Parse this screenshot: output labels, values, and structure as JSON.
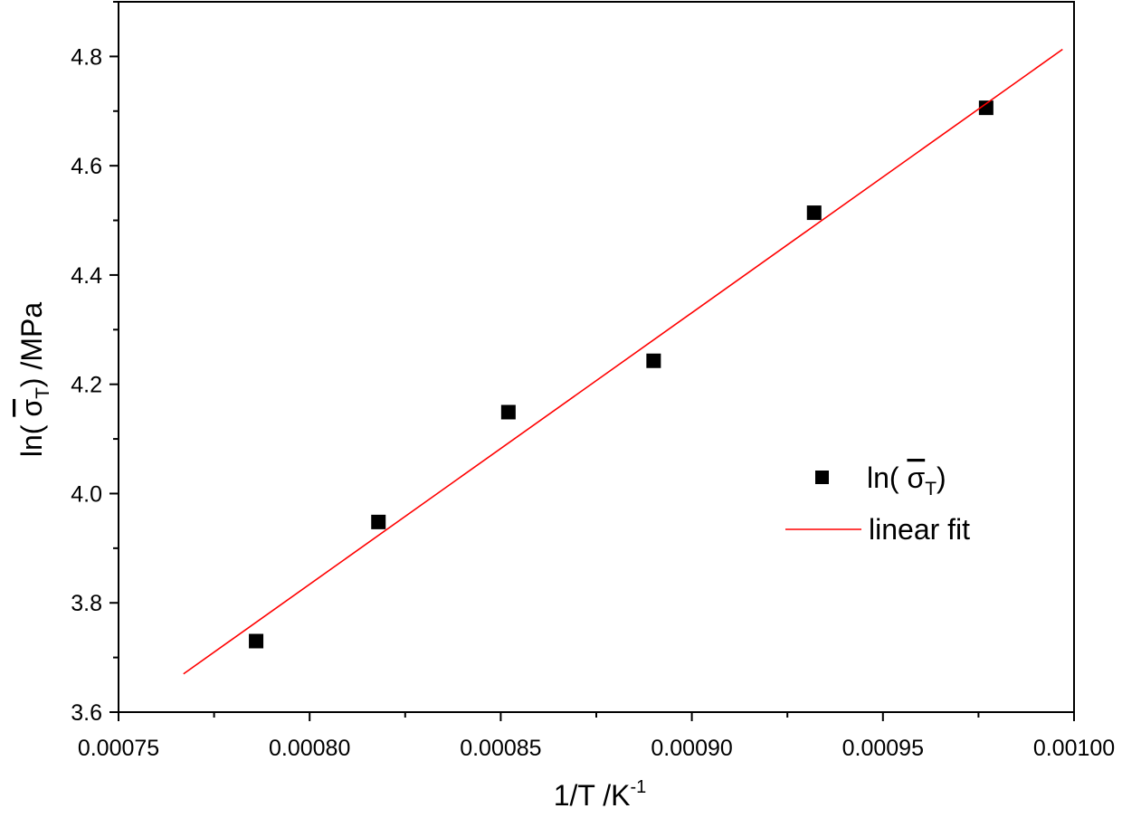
{
  "chart_data": {
    "type": "scatter",
    "xlabel": {
      "base": "1/T /K",
      "sup": "-1"
    },
    "ylabel": {
      "prefix": "ln(",
      "symbol": "σ",
      "sub": "T",
      "suffix": ") /MPa"
    },
    "xlim": [
      0.00075,
      0.001
    ],
    "ylim": [
      3.6,
      4.9
    ],
    "x_ticks": [
      0.00075,
      0.0008,
      0.00085,
      0.0009,
      0.00095,
      0.001
    ],
    "x_tick_labels": [
      "0.00075",
      "0.00080",
      "0.00085",
      "0.00090",
      "0.00095",
      "0.00100"
    ],
    "y_ticks": [
      3.6,
      3.8,
      4.0,
      4.2,
      4.4,
      4.6,
      4.8
    ],
    "y_tick_labels": [
      "3.6",
      "3.8",
      "4.0",
      "4.2",
      "4.4",
      "4.6",
      "4.8"
    ],
    "grid": false,
    "legend_position": "right-middle",
    "series": [
      {
        "name": {
          "prefix": "ln(",
          "symbol": "σ",
          "sub": "T",
          "suffix": ")"
        },
        "kind": "scatter",
        "marker": "square",
        "color": "#000000",
        "x": [
          0.000786,
          0.000818,
          0.000852,
          0.00089,
          0.000932,
          0.000977
        ],
        "y": [
          3.73,
          3.948,
          4.149,
          4.243,
          4.514,
          4.706
        ]
      },
      {
        "name": "linear fit",
        "kind": "line",
        "color": "#ff0000",
        "x": [
          0.000767,
          0.000997
        ],
        "y": [
          3.67,
          4.813
        ]
      }
    ]
  }
}
